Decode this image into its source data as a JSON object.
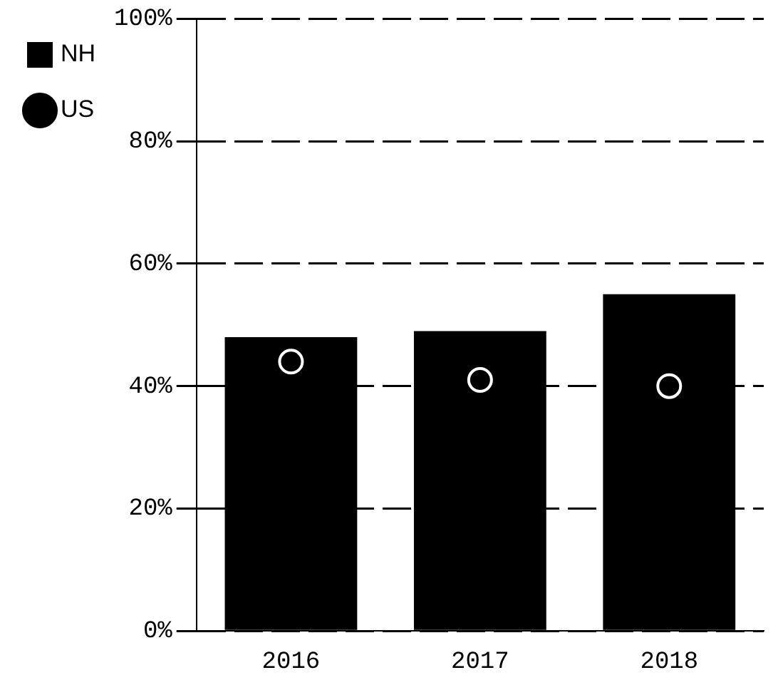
{
  "chart_data": {
    "type": "bar",
    "categories": [
      "2016",
      "2017",
      "2018"
    ],
    "series": [
      {
        "name": "NH",
        "color": "#000000",
        "values": [
          48,
          49,
          55
        ]
      },
      {
        "name": "US",
        "type": "scatter",
        "color": "#000000",
        "values": [
          44,
          41,
          40
        ]
      }
    ],
    "ylim": [
      0,
      100
    ],
    "yticks": [
      {
        "value": 0,
        "label": "0%"
      },
      {
        "value": 20,
        "label": "20%"
      },
      {
        "value": 40,
        "label": "40%"
      },
      {
        "value": 60,
        "label": "60%"
      },
      {
        "value": 80,
        "label": "80%"
      },
      {
        "value": 100,
        "label": "100%"
      }
    ],
    "grid": "y",
    "legend": "left",
    "marker": "circle"
  }
}
